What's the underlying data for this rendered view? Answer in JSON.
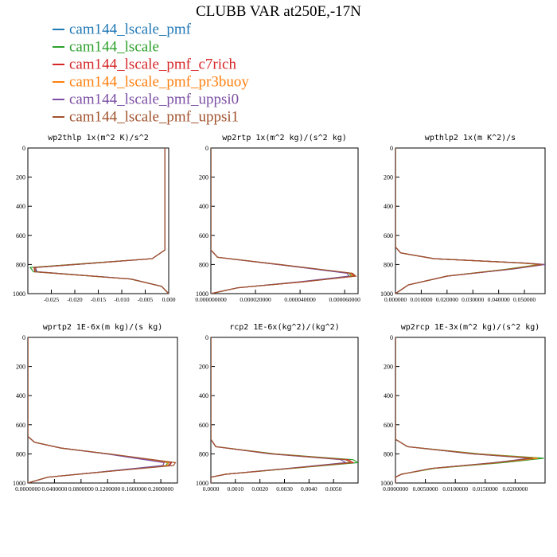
{
  "page": {
    "title": "CLUBB VAR at250E,-17N"
  },
  "legend": [
    {
      "label": "cam144_lscale_pmf",
      "color": "#1f77b4"
    },
    {
      "label": "cam144_lscale",
      "color": "#2ca02c"
    },
    {
      "label": "cam144_lscale_pmf_c7rich",
      "color": "#d62728"
    },
    {
      "label": "cam144_lscale_pmf_pr3buoy",
      "color": "#ff7f0e"
    },
    {
      "label": "cam144_lscale_pmf_uppsi0",
      "color": "#7b4ea3"
    },
    {
      "label": "cam144_lscale_pmf_uppsi1",
      "color": "#a0522d"
    }
  ],
  "chart_data": [
    {
      "type": "line",
      "title": "wp2thlp  1x(m^2 K)/s^2",
      "xlim": [
        -0.03,
        0.0
      ],
      "ylim": [
        1000,
        0
      ],
      "xticks": [
        -0.025,
        -0.02,
        -0.015,
        -0.01,
        -0.005,
        0.0
      ],
      "xticklabels": [
        "-0.025",
        "-0.020",
        "-0.015",
        "-0.010",
        "-0.005",
        "0.000"
      ],
      "yticks": [
        0,
        200,
        400,
        600,
        800,
        1000
      ],
      "series": [
        {
          "y": [
            0,
            700,
            760,
            790,
            820,
            850,
            900,
            950,
            1000
          ],
          "x": [
            -0.0008,
            -0.0008,
            -0.0035,
            -0.016,
            -0.0285,
            -0.028,
            -0.008,
            -0.0015,
            0.0
          ]
        },
        {
          "y": [
            0,
            700,
            760,
            790,
            820,
            850,
            900,
            950,
            1000
          ],
          "x": [
            -0.0008,
            -0.0008,
            -0.0035,
            -0.0165,
            -0.0295,
            -0.0288,
            -0.0082,
            -0.0015,
            0.0
          ]
        },
        {
          "y": [
            0,
            700,
            760,
            790,
            820,
            850,
            900,
            950,
            1000
          ],
          "x": [
            -0.0008,
            -0.0008,
            -0.0035,
            -0.016,
            -0.0287,
            -0.0285,
            -0.0081,
            -0.0015,
            0.0
          ]
        },
        {
          "y": [
            0,
            700,
            760,
            790,
            820,
            850,
            900,
            950,
            1000
          ],
          "x": [
            -0.0008,
            -0.0008,
            -0.0035,
            -0.0158,
            -0.0285,
            -0.0283,
            -0.008,
            -0.0015,
            0.0
          ]
        },
        {
          "y": [
            0,
            700,
            760,
            790,
            820,
            850,
            900,
            950,
            1000
          ],
          "x": [
            -0.0008,
            -0.0008,
            -0.0035,
            -0.0157,
            -0.0283,
            -0.0282,
            -0.0079,
            -0.0015,
            0.0
          ]
        },
        {
          "y": [
            0,
            700,
            760,
            790,
            820,
            850,
            900,
            950,
            1000
          ],
          "x": [
            -0.0008,
            -0.0008,
            -0.0035,
            -0.016,
            -0.0286,
            -0.0284,
            -0.008,
            -0.0015,
            0.0
          ]
        }
      ]
    },
    {
      "type": "line",
      "title": "wp2rtp  1x(m^2 kg)/(s^2 kg)",
      "xlim": [
        0.0,
        6.6e-05
      ],
      "ylim": [
        1000,
        0
      ],
      "xticks": [
        0.0,
        2e-05,
        4e-05,
        6e-05
      ],
      "xticklabels": [
        "0.000000000",
        "0.000020000",
        "0.000040000",
        "0.000060000"
      ],
      "yticks": [
        0,
        200,
        400,
        600,
        800,
        1000
      ],
      "series": [
        {
          "y": [
            0,
            700,
            750,
            800,
            860,
            880,
            920,
            960,
            1000
          ],
          "x": [
            0.0,
            0.0,
            3e-06,
            3e-05,
            6.3e-05,
            6.4e-05,
            4e-05,
            1.2e-05,
            0.0
          ]
        },
        {
          "y": [
            0,
            700,
            750,
            800,
            860,
            880,
            920,
            960,
            1000
          ],
          "x": [
            0.0,
            0.0,
            3e-06,
            3e-05,
            6.2e-05,
            6.3e-05,
            4e-05,
            1.2e-05,
            0.0
          ]
        },
        {
          "y": [
            0,
            700,
            750,
            800,
            860,
            880,
            920,
            960,
            1000
          ],
          "x": [
            0.0,
            0.0,
            3e-06,
            3e-05,
            6.3e-05,
            6.45e-05,
            4.1e-05,
            1.2e-05,
            0.0
          ]
        },
        {
          "y": [
            0,
            700,
            750,
            800,
            860,
            880,
            920,
            960,
            1000
          ],
          "x": [
            0.0,
            0.0,
            3e-06,
            3e-05,
            6.25e-05,
            6.38e-05,
            4e-05,
            1.2e-05,
            0.0
          ]
        },
        {
          "y": [
            0,
            700,
            750,
            800,
            860,
            880,
            920,
            960,
            1000
          ],
          "x": [
            0.0,
            0.0,
            3e-06,
            3e-05,
            6.1e-05,
            6.2e-05,
            3.9e-05,
            1.2e-05,
            0.0
          ]
        },
        {
          "y": [
            0,
            700,
            750,
            800,
            860,
            880,
            920,
            960,
            1000
          ],
          "x": [
            0.0,
            0.0,
            3e-06,
            3.1e-05,
            6.35e-05,
            6.5e-05,
            4.05e-05,
            1.2e-05,
            0.0
          ]
        }
      ]
    },
    {
      "type": "line",
      "title": "wpthlp2  1x(m K^2)/s",
      "xlim": [
        0.0,
        0.058
      ],
      "ylim": [
        1000,
        0
      ],
      "xticks": [
        0.0,
        0.01,
        0.02,
        0.03,
        0.04,
        0.05
      ],
      "xticklabels": [
        "0.000000",
        "0.010000",
        "0.020000",
        "0.030000",
        "0.040000",
        "0.050000"
      ],
      "yticks": [
        0,
        200,
        400,
        600,
        800,
        1000
      ],
      "series": [
        {
          "y": [
            0,
            680,
            720,
            760,
            790,
            800,
            830,
            880,
            940,
            1000
          ],
          "x": [
            0.0,
            0.0,
            0.002,
            0.015,
            0.05,
            0.057,
            0.045,
            0.02,
            0.005,
            0.0
          ]
        },
        {
          "y": [
            0,
            680,
            720,
            760,
            790,
            800,
            830,
            880,
            940,
            1000
          ],
          "x": [
            0.0,
            0.0,
            0.002,
            0.015,
            0.049,
            0.056,
            0.044,
            0.02,
            0.005,
            0.0
          ]
        },
        {
          "y": [
            0,
            680,
            720,
            760,
            790,
            800,
            830,
            880,
            940,
            1000
          ],
          "x": [
            0.0,
            0.0,
            0.002,
            0.015,
            0.05,
            0.0575,
            0.0455,
            0.02,
            0.005,
            0.0
          ]
        },
        {
          "y": [
            0,
            680,
            720,
            760,
            790,
            800,
            830,
            880,
            940,
            1000
          ],
          "x": [
            0.0,
            0.0,
            0.002,
            0.015,
            0.049,
            0.0565,
            0.045,
            0.02,
            0.005,
            0.0
          ]
        },
        {
          "y": [
            0,
            680,
            720,
            760,
            790,
            800,
            830,
            880,
            940,
            1000
          ],
          "x": [
            0.0,
            0.0,
            0.002,
            0.015,
            0.0505,
            0.058,
            0.046,
            0.02,
            0.005,
            0.0
          ]
        },
        {
          "y": [
            0,
            680,
            720,
            760,
            790,
            800,
            830,
            880,
            940,
            1000
          ],
          "x": [
            0.0,
            0.0,
            0.002,
            0.015,
            0.05,
            0.057,
            0.045,
            0.02,
            0.005,
            0.0
          ]
        }
      ]
    },
    {
      "type": "line",
      "title": "wprtp2  1E-6x(m kg)/(s kg)",
      "xlim": [
        0.0,
        0.225
      ],
      "ylim": [
        1000,
        0
      ],
      "xticks": [
        0.0,
        0.04,
        0.08,
        0.12,
        0.16,
        0.2
      ],
      "xticklabels": [
        "0.0000000",
        "0.0400000",
        "0.0800000",
        "0.1200000",
        "0.1600000",
        "0.2000000"
      ],
      "yticks": [
        0,
        200,
        400,
        600,
        800,
        1000
      ],
      "series": [
        {
          "y": [
            0,
            680,
            720,
            760,
            800,
            860,
            880,
            920,
            960,
            1000
          ],
          "x": [
            0.0,
            0.0,
            0.01,
            0.05,
            0.12,
            0.215,
            0.212,
            0.12,
            0.03,
            0.0
          ]
        },
        {
          "y": [
            0,
            680,
            720,
            760,
            800,
            860,
            880,
            920,
            960,
            1000
          ],
          "x": [
            0.0,
            0.0,
            0.01,
            0.05,
            0.12,
            0.21,
            0.208,
            0.12,
            0.03,
            0.0
          ]
        },
        {
          "y": [
            0,
            680,
            720,
            760,
            800,
            860,
            880,
            920,
            960,
            1000
          ],
          "x": [
            0.0,
            0.0,
            0.01,
            0.05,
            0.12,
            0.216,
            0.213,
            0.12,
            0.03,
            0.0
          ]
        },
        {
          "y": [
            0,
            680,
            720,
            760,
            800,
            860,
            880,
            920,
            960,
            1000
          ],
          "x": [
            0.0,
            0.0,
            0.01,
            0.05,
            0.12,
            0.212,
            0.21,
            0.12,
            0.03,
            0.0
          ]
        },
        {
          "y": [
            0,
            680,
            720,
            760,
            800,
            860,
            880,
            920,
            960,
            1000
          ],
          "x": [
            0.0,
            0.0,
            0.01,
            0.05,
            0.118,
            0.205,
            0.203,
            0.118,
            0.03,
            0.0
          ]
        },
        {
          "y": [
            0,
            680,
            720,
            760,
            800,
            860,
            880,
            920,
            960,
            1000
          ],
          "x": [
            0.0,
            0.0,
            0.01,
            0.05,
            0.122,
            0.222,
            0.219,
            0.122,
            0.03,
            0.0
          ]
        }
      ]
    },
    {
      "type": "line",
      "title": "rcp2  1E-6x(kg^2)/(kg^2)",
      "xlim": [
        0.0,
        0.006
      ],
      "ylim": [
        1000,
        0
      ],
      "xticks": [
        0.0,
        0.001,
        0.002,
        0.003,
        0.004,
        0.005
      ],
      "xticklabels": [
        "0.0000",
        "0.0010",
        "0.0020",
        "0.0030",
        "0.0040",
        "0.0050"
      ],
      "yticks": [
        0,
        200,
        400,
        600,
        800,
        1000
      ],
      "series": [
        {
          "y": [
            0,
            700,
            750,
            800,
            840,
            860,
            900,
            940,
            960,
            1000
          ],
          "x": [
            0.0,
            0.0,
            0.0002,
            0.0025,
            0.0055,
            0.0057,
            0.0032,
            0.0006,
            0.0,
            0.0
          ]
        },
        {
          "y": [
            0,
            700,
            750,
            800,
            840,
            860,
            900,
            940,
            960,
            1000
          ],
          "x": [
            0.0,
            0.0,
            0.0002,
            0.0026,
            0.0058,
            0.006,
            0.0033,
            0.0006,
            0.0,
            0.0
          ]
        },
        {
          "y": [
            0,
            700,
            750,
            800,
            840,
            860,
            900,
            940,
            960,
            1000
          ],
          "x": [
            0.0,
            0.0,
            0.0002,
            0.0025,
            0.0056,
            0.0058,
            0.0032,
            0.0006,
            0.0,
            0.0
          ]
        },
        {
          "y": [
            0,
            700,
            750,
            800,
            840,
            860,
            900,
            940,
            960,
            1000
          ],
          "x": [
            0.0,
            0.0,
            0.0002,
            0.0025,
            0.0055,
            0.0057,
            0.0032,
            0.0006,
            0.0,
            0.0
          ]
        },
        {
          "y": [
            0,
            700,
            750,
            800,
            840,
            860,
            900,
            940,
            960,
            1000
          ],
          "x": [
            0.0,
            0.0,
            0.0002,
            0.0024,
            0.0053,
            0.0055,
            0.0031,
            0.0006,
            0.0,
            0.0
          ]
        },
        {
          "y": [
            0,
            700,
            750,
            800,
            840,
            860,
            900,
            940,
            960,
            1000
          ],
          "x": [
            0.0,
            0.0,
            0.0002,
            0.0025,
            0.0055,
            0.0057,
            0.0032,
            0.0006,
            0.0,
            0.0
          ]
        }
      ]
    },
    {
      "type": "line",
      "title": "wp2rcp  1E-3x(m^2 kg)/(s^2 kg)",
      "xlim": [
        0.0,
        0.025
      ],
      "ylim": [
        1000,
        0
      ],
      "xticks": [
        0.0,
        0.005,
        0.01,
        0.015,
        0.02
      ],
      "xticklabels": [
        "0.0000000",
        "0.0050000",
        "0.0100000",
        "0.0150000",
        "0.0200000"
      ],
      "yticks": [
        0,
        200,
        400,
        600,
        800,
        1000
      ],
      "series": [
        {
          "y": [
            0,
            700,
            750,
            800,
            830,
            860,
            900,
            940,
            960,
            1000
          ],
          "x": [
            0.0,
            0.0,
            0.002,
            0.013,
            0.023,
            0.017,
            0.006,
            0.001,
            0.0,
            0.0
          ]
        },
        {
          "y": [
            0,
            700,
            750,
            800,
            830,
            860,
            900,
            940,
            960,
            1000
          ],
          "x": [
            0.0,
            0.0,
            0.002,
            0.014,
            0.0248,
            0.018,
            0.0065,
            0.001,
            0.0,
            0.0
          ]
        },
        {
          "y": [
            0,
            700,
            750,
            800,
            830,
            860,
            900,
            940,
            960,
            1000
          ],
          "x": [
            0.0,
            0.0,
            0.002,
            0.013,
            0.0235,
            0.017,
            0.006,
            0.001,
            0.0,
            0.0
          ]
        },
        {
          "y": [
            0,
            700,
            750,
            800,
            830,
            860,
            900,
            940,
            960,
            1000
          ],
          "x": [
            0.0,
            0.0,
            0.002,
            0.0135,
            0.0238,
            0.0172,
            0.0062,
            0.001,
            0.0,
            0.0
          ]
        },
        {
          "y": [
            0,
            700,
            750,
            800,
            830,
            860,
            900,
            940,
            960,
            1000
          ],
          "x": [
            0.0,
            0.0,
            0.002,
            0.0128,
            0.0225,
            0.0165,
            0.006,
            0.001,
            0.0,
            0.0
          ]
        },
        {
          "y": [
            0,
            700,
            750,
            800,
            830,
            860,
            900,
            940,
            960,
            1000
          ],
          "x": [
            0.0,
            0.0,
            0.002,
            0.0132,
            0.023,
            0.017,
            0.006,
            0.001,
            0.0,
            0.0
          ]
        }
      ]
    }
  ]
}
